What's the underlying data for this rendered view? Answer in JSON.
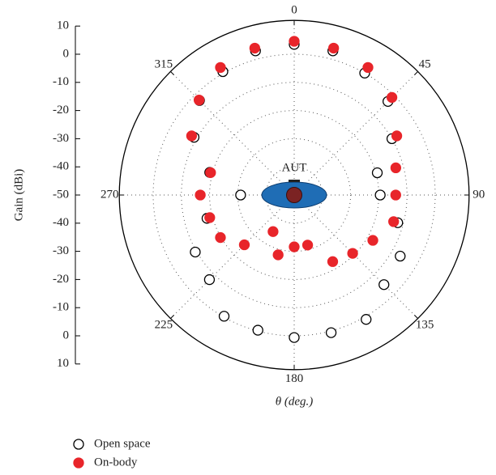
{
  "chart_data": {
    "type": "polar_scatter",
    "ylabel": "Gain (dBi)",
    "xlabel": "θ (deg.)",
    "annotation": "AUT",
    "x": [
      0,
      15,
      30,
      45,
      60,
      75,
      90,
      105,
      120,
      135,
      150,
      165,
      180,
      195,
      210,
      225,
      240,
      255,
      270,
      285,
      300,
      315,
      330,
      345
    ],
    "thetaticks": [
      0,
      45,
      90,
      135,
      180,
      225,
      270,
      315
    ],
    "rlim": [
      -50,
      10
    ],
    "rticks": [
      -50,
      -40,
      -30,
      -20,
      -10,
      0,
      10
    ],
    "rgrid": [
      -40,
      -30,
      -20,
      -10,
      0
    ],
    "series": [
      {
        "name": "Open space",
        "color": "#000000",
        "marker": "open",
        "values": [
          3.5,
          3,
          0,
          -3,
          -10,
          -19.5,
          -19.5,
          -12,
          -6.6,
          -5,
          1,
          0.6,
          0.6,
          -0.3,
          -0.3,
          -7.5,
          -9.5,
          -18,
          -31,
          -19,
          -9,
          -2.5,
          0.6,
          3
        ]
      },
      {
        "name": "On-body",
        "color": "#e8252a",
        "marker": "filled",
        "values": [
          4.6,
          4,
          2.3,
          -1,
          -8,
          -12.7,
          -14,
          -13.5,
          -17.8,
          -20.7,
          -22.7,
          -31.6,
          -31.6,
          -28,
          -35,
          -25,
          -19.8,
          -19,
          -16.7,
          -19.3,
          -8,
          -2.3,
          2.3,
          4
        ]
      }
    ]
  }
}
